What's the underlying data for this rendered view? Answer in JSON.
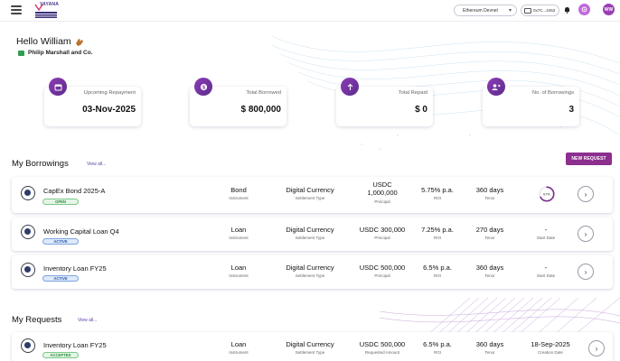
{
  "header": {
    "logo_text": "VAYANA",
    "network": "Ethereum Devnet",
    "wallet": "0x7C...4453",
    "avatar_initials": "WW"
  },
  "greeting": {
    "hello": "Hello William",
    "company": "Philip Marshall and Co."
  },
  "stats": [
    {
      "label": "Upcoming Repayment",
      "value": "03-Nov-2025",
      "icon": "calendar-icon"
    },
    {
      "label": "Total Borrowed",
      "value": "$ 800,000",
      "icon": "dollar-icon"
    },
    {
      "label": "Total Repaid",
      "value": "$ 0",
      "icon": "arrow-up-icon"
    },
    {
      "label": "No. of Borrowings",
      "value": "3",
      "icon": "users-icon"
    }
  ],
  "borrowings": {
    "title": "My Borrowings",
    "view_all": "View all...",
    "new_request": "NEW REQUEST",
    "rows": [
      {
        "name": "CapEx Bond 2025-A",
        "status": "OPEN",
        "instrument": "Bond",
        "instrument_label": "Instrument",
        "settlement": "Digital Currency",
        "settlement_label": "Settlement Type",
        "principal_line1": "USDC",
        "principal_line2": "1,000,000",
        "principal_label": "Principal",
        "roi": "5.75% p.a.",
        "roi_label": "ROI",
        "tenor": "360 days",
        "tenor_label": "Tenor",
        "progress": "67%",
        "progress_value": 0.67
      },
      {
        "name": "Working Capital Loan Q4",
        "status": "ACTIVE",
        "instrument": "Loan",
        "instrument_label": "Instrument",
        "settlement": "Digital Currency",
        "settlement_label": "Settlement Type",
        "principal": "USDC 300,000",
        "principal_label": "Principal",
        "roi": "7.25% p.a.",
        "roi_label": "ROI",
        "tenor": "270 days",
        "tenor_label": "Tenor",
        "start_date": "-",
        "start_date_label": "Start Date"
      },
      {
        "name": "Inventory Loan FY25",
        "status": "ACTIVE",
        "instrument": "Loan",
        "instrument_label": "Instrument",
        "settlement": "Digital Currency",
        "settlement_label": "Settlement Type",
        "principal": "USDC 500,000",
        "principal_label": "Principal",
        "roi": "6.5% p.a.",
        "roi_label": "ROI",
        "tenor": "360 days",
        "tenor_label": "Tenor",
        "start_date": "-",
        "start_date_label": "Start Date"
      }
    ]
  },
  "requests": {
    "title": "My Requests",
    "view_all": "View all...",
    "rows": [
      {
        "name": "Inventory Loan FY25",
        "status": "ACCEPTED",
        "instrument": "Loan",
        "instrument_label": "Instrument",
        "settlement": "Digital Currency",
        "settlement_label": "Settlement Type",
        "amount": "USDC 500,000",
        "amount_label": "Requested Amount",
        "roi": "6.5% p.a.",
        "roi_label": "ROI",
        "tenor": "360 days",
        "tenor_label": "Tenor",
        "created": "18-Sep-2025",
        "created_label": "Creation Date"
      }
    ]
  }
}
